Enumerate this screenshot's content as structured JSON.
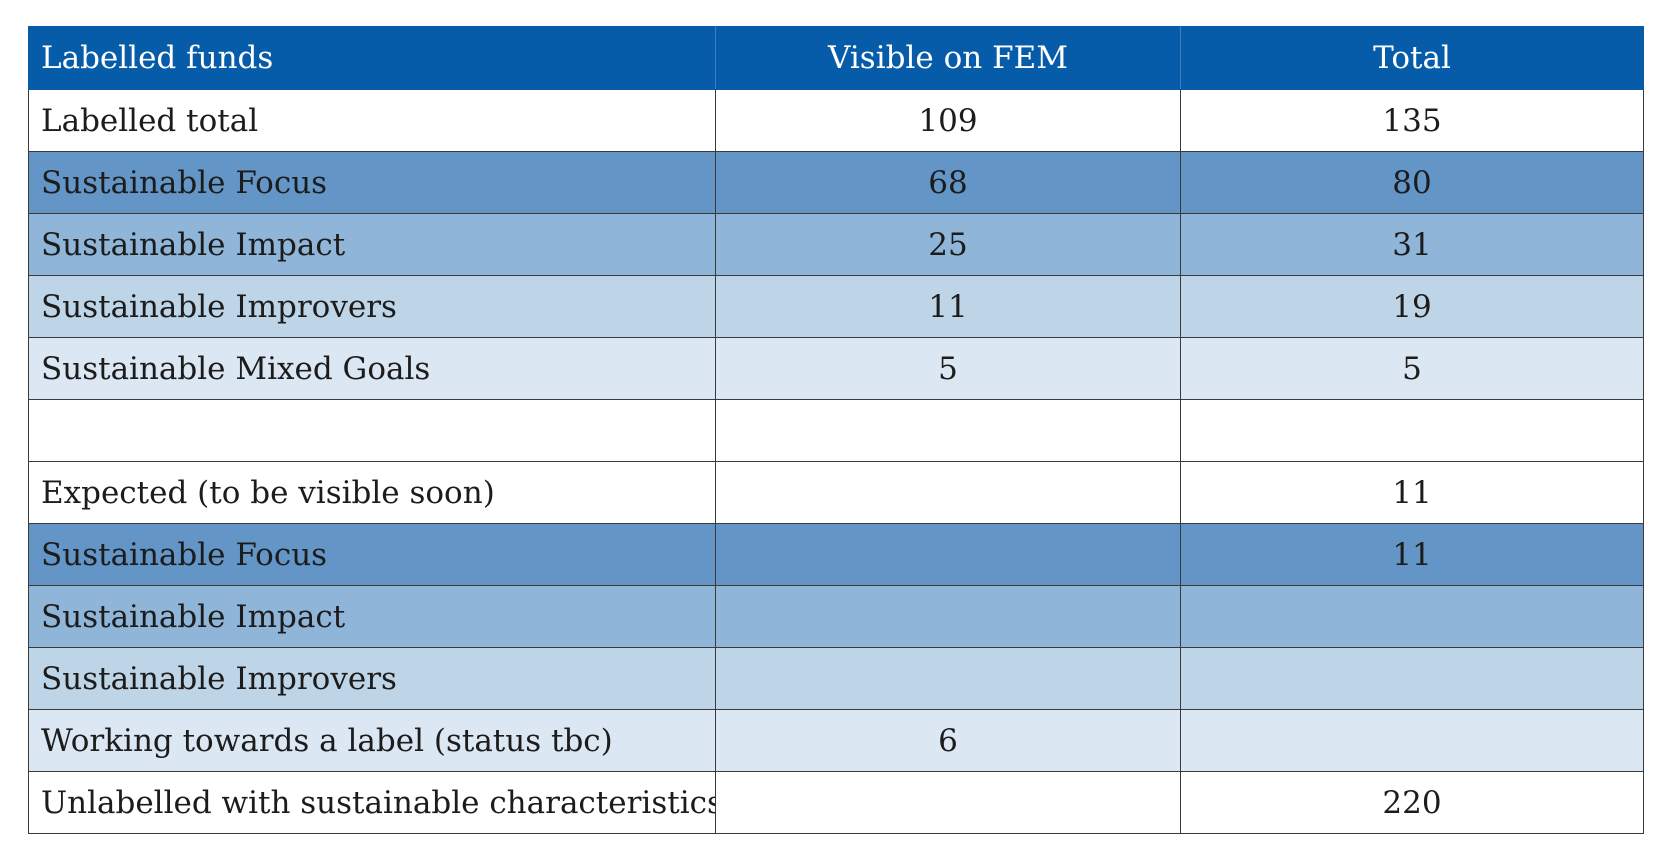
{
  "table": {
    "headers": [
      "Labelled funds",
      "Visible on FEM",
      "Total"
    ],
    "rows": [
      {
        "label": "Labelled total",
        "visible": "109",
        "total": "135",
        "tone": "white"
      },
      {
        "label": "Sustainable Focus",
        "visible": "68",
        "total": "80",
        "tone": "dark"
      },
      {
        "label": "Sustainable Impact",
        "visible": "25",
        "total": "31",
        "tone": "mid"
      },
      {
        "label": "Sustainable Improvers",
        "visible": "11",
        "total": "19",
        "tone": "light"
      },
      {
        "label": "Sustainable Mixed Goals",
        "visible": "5",
        "total": "5",
        "tone": "pale"
      },
      {
        "label": "",
        "visible": "",
        "total": "",
        "tone": "blank"
      },
      {
        "label": "Expected (to be visible soon)",
        "visible": "",
        "total": "11",
        "tone": "white"
      },
      {
        "label": "Sustainable Focus",
        "visible": "",
        "total": "11",
        "tone": "dark"
      },
      {
        "label": "Sustainable Impact",
        "visible": "",
        "total": "",
        "tone": "mid"
      },
      {
        "label": "Sustainable Improvers",
        "visible": "",
        "total": "",
        "tone": "light"
      },
      {
        "label": "Working towards a label (status tbc)",
        "visible": "6",
        "total": "",
        "tone": "pale"
      },
      {
        "label": "Unlabelled with sustainable characteristics",
        "visible": "",
        "total": "220",
        "tone": "white"
      }
    ]
  },
  "colors": {
    "header_bg": "#075ca9",
    "dark": "#6396c6",
    "mid": "#8fb5d8",
    "light": "#bed5e8",
    "pale": "#dbe7f2"
  }
}
